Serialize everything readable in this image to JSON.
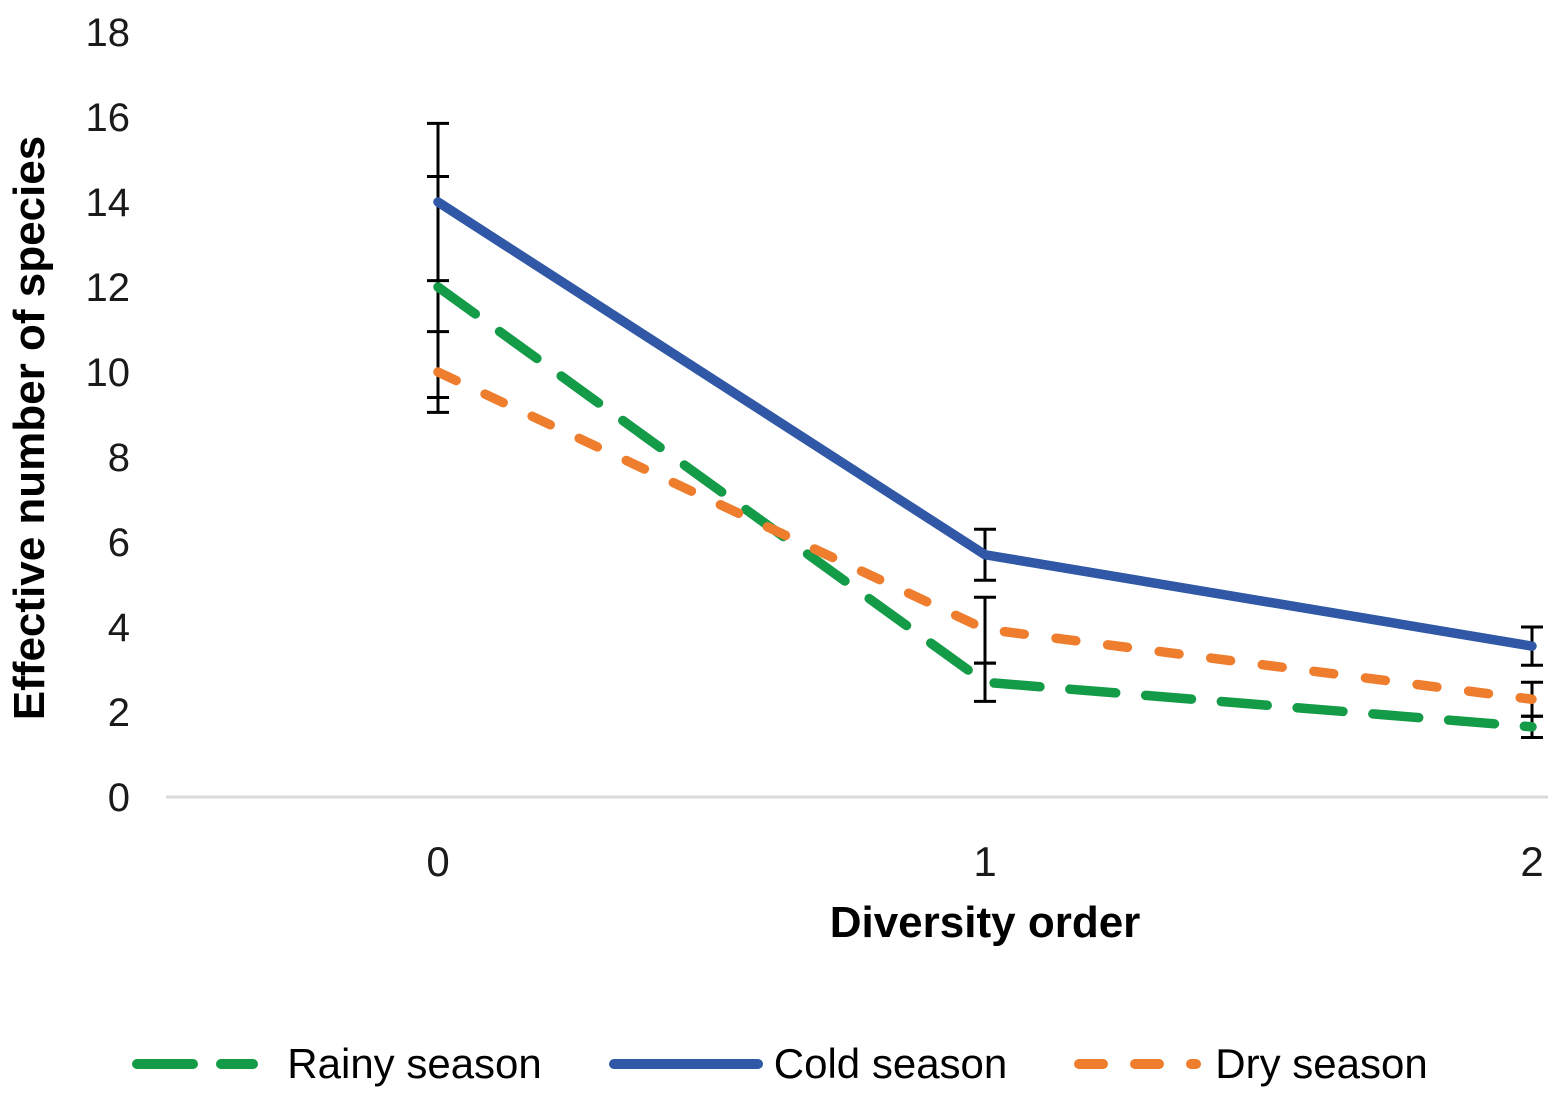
{
  "chart_data": {
    "type": "line",
    "categories": [
      "0",
      "1",
      "2"
    ],
    "xlabel": "Diversity order",
    "ylabel": "Effective number of species",
    "ylim": [
      0,
      18
    ],
    "yticks": [
      0,
      2,
      4,
      6,
      8,
      10,
      12,
      14,
      16,
      18
    ],
    "grid": "baseline-only",
    "legend_position": "bottom",
    "error_bar_color": "#000000",
    "series": [
      {
        "name": "Rainy season",
        "color": "#149B48",
        "dash": "long-dash",
        "values": [
          12.0,
          2.7,
          1.65
        ],
        "error_upper": [
          2.6,
          0.45,
          0.25
        ],
        "error_lower": [
          2.6,
          0.45,
          0.25
        ]
      },
      {
        "name": "Cold season",
        "color": "#3058A6",
        "dash": "solid",
        "values": [
          14.0,
          5.7,
          3.55
        ],
        "error_upper": [
          1.85,
          0.6,
          0.45
        ],
        "error_lower": [
          1.85,
          0.6,
          0.45
        ]
      },
      {
        "name": "Dry season",
        "color": "#EE7D2E",
        "dash": "short-dash",
        "values": [
          10.0,
          3.95,
          2.3
        ],
        "error_upper": [
          0.95,
          0.75,
          0.4
        ],
        "error_lower": [
          0.95,
          0.8,
          0.4
        ]
      }
    ]
  }
}
